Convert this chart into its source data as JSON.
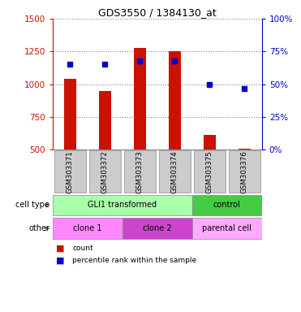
{
  "title": "GDS3550 / 1384130_at",
  "samples": [
    "GSM303371",
    "GSM303372",
    "GSM303373",
    "GSM303374",
    "GSM303375",
    "GSM303376"
  ],
  "counts": [
    1040,
    950,
    1280,
    1250,
    615,
    510
  ],
  "percentiles": [
    65,
    65,
    68,
    68,
    50,
    47
  ],
  "y_min": 500,
  "y_max": 1500,
  "y_ticks": [
    500,
    750,
    1000,
    1250,
    1500
  ],
  "right_y_ticks": [
    0,
    25,
    50,
    75,
    100
  ],
  "bar_color": "#cc1100",
  "dot_color": "#0000cc",
  "cell_type_groups": [
    {
      "label": "GLI1 transformed",
      "start": 0,
      "end": 4,
      "color": "#aaffaa"
    },
    {
      "label": "control",
      "start": 4,
      "end": 6,
      "color": "#44cc44"
    }
  ],
  "other_groups": [
    {
      "label": "clone 1",
      "start": 0,
      "end": 2,
      "color": "#ff88ff"
    },
    {
      "label": "clone 2",
      "start": 2,
      "end": 4,
      "color": "#cc44cc"
    },
    {
      "label": "parental cell",
      "start": 4,
      "end": 6,
      "color": "#ffaaff"
    }
  ],
  "cell_type_label": "cell type",
  "other_label": "other",
  "legend_count_label": "count",
  "legend_percentile_label": "percentile rank within the sample",
  "left_axis_color": "#cc1100",
  "right_axis_color": "#0000cc",
  "bar_width": 0.35,
  "xlabel_bg_color": "#cccccc",
  "xlabel_edge_color": "#aaaaaa"
}
